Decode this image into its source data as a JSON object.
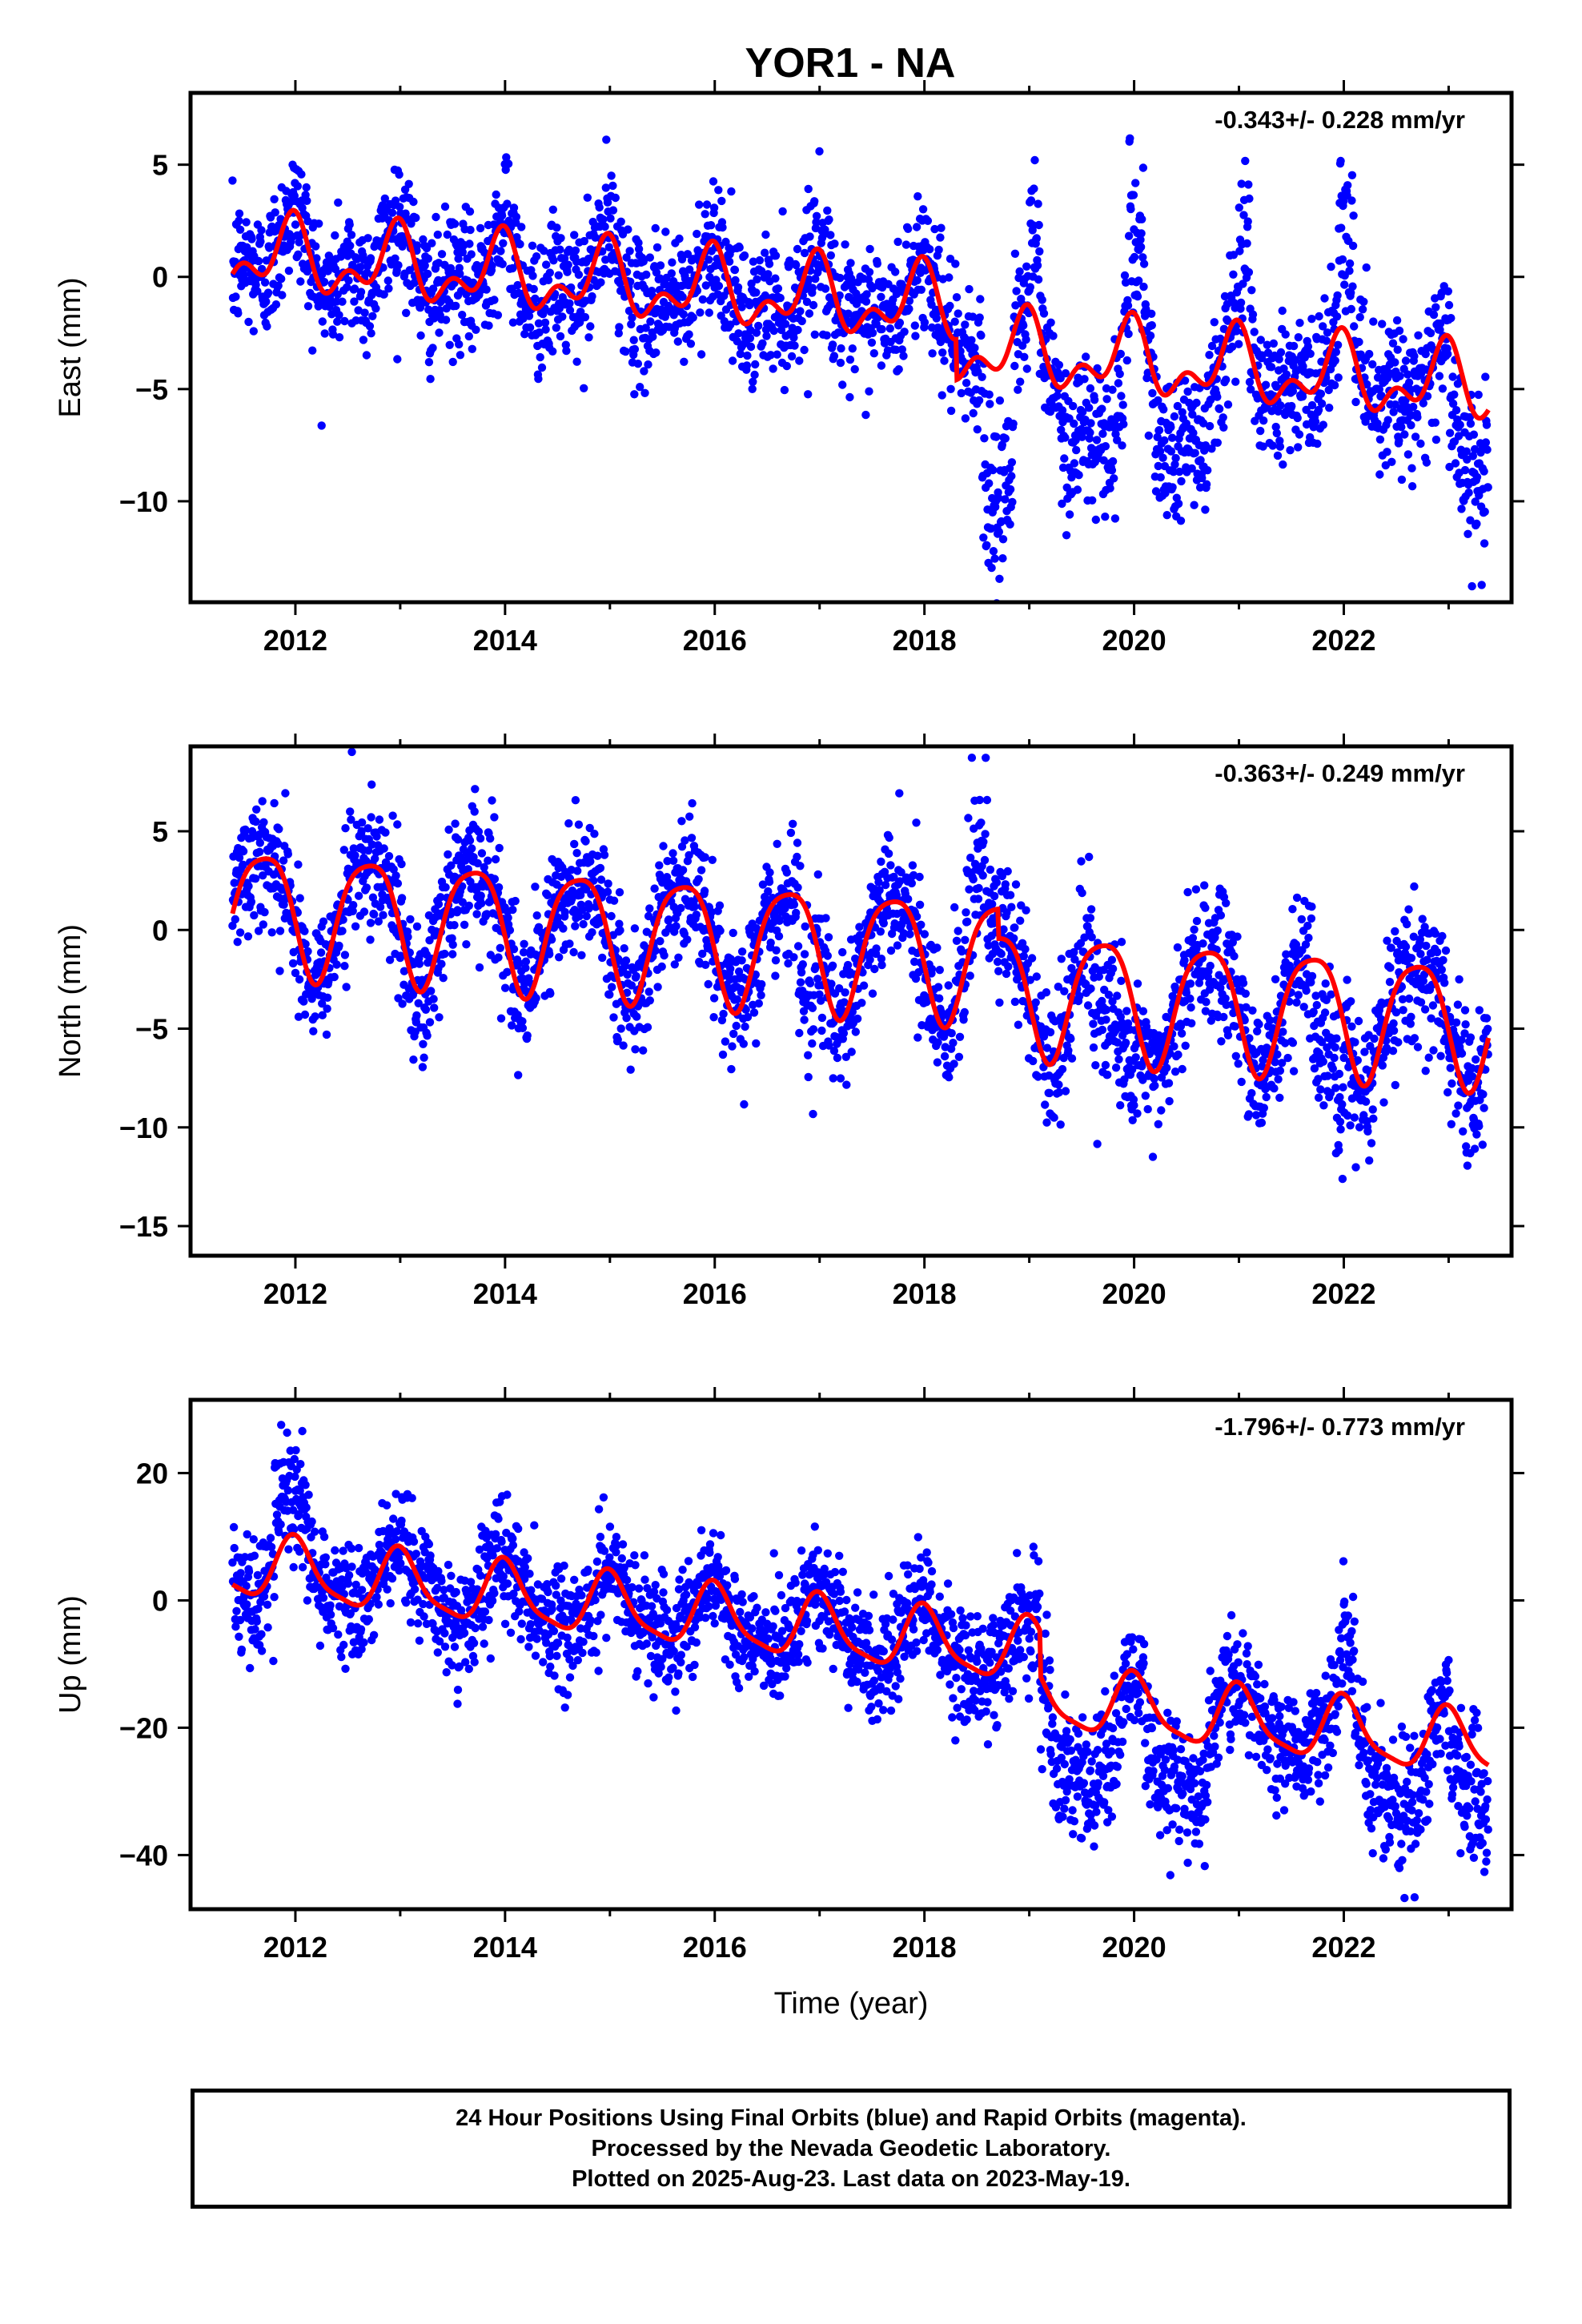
{
  "title": "YOR1 - NA",
  "colors": {
    "points": "#0000ff",
    "model": "#ff0000",
    "axes": "#000000"
  },
  "footer": {
    "line1": "24 Hour Positions Using Final Orbits (blue) and Rapid Orbits (magenta).",
    "line2": "Processed by the Nevada Geodetic Laboratory.",
    "line3": "Plotted on 2025-Aug-23. Last data on 2023-May-19."
  },
  "chart_data": [
    {
      "type": "scatter",
      "component": "East",
      "ylabel": "East (mm)",
      "xlabel": "",
      "rate_label": "-0.343+/- 0.228 mm/yr",
      "xlim": [
        2011.0,
        2023.6
      ],
      "ylim": [
        -14.5,
        8.2
      ],
      "xticks": [
        2012,
        2014,
        2016,
        2018,
        2020,
        2022
      ],
      "yticks": [
        5,
        0,
        -5,
        -10
      ],
      "ytick_labels": [
        "5",
        "0",
        "−10"
      ],
      "ytick_label_values": [
        5,
        0,
        -10
      ],
      "ytick_minus5_label": "−5",
      "grid": false,
      "data_start": 2011.4,
      "data_end": 2023.38,
      "model": {
        "offset": 1.0,
        "rate": -0.343,
        "ref": 2011.4,
        "annual_amp": 1.3,
        "annual_phase": 0.3,
        "semiannual_amp": 0.9,
        "semiannual_phase": 0.1,
        "breaks": [
          {
            "t": 2018.3,
            "step": -1.8
          }
        ]
      },
      "scatter_sigma": 1.5,
      "excursions": [
        {
          "start": 2018.55,
          "end": 2018.85,
          "shift": -5.5
        },
        {
          "start": 2019.3,
          "end": 2019.9,
          "shift": -3.0
        },
        {
          "start": 2020.2,
          "end": 2020.7,
          "shift": -2.5
        },
        {
          "start": 2023.0,
          "end": 2023.38,
          "shift": -3.0
        }
      ],
      "spikes": [
        {
          "start": 2019.0,
          "end": 2019.1,
          "shift": 4.0
        },
        {
          "start": 2019.95,
          "end": 2020.1,
          "shift": 4.5
        },
        {
          "start": 2021.0,
          "end": 2021.1,
          "shift": 5.0
        },
        {
          "start": 2021.95,
          "end": 2022.1,
          "shift": 5.0
        }
      ]
    },
    {
      "type": "scatter",
      "component": "North",
      "ylabel": "North (mm)",
      "xlabel": "",
      "rate_label": "-0.363+/- 0.249 mm/yr",
      "xlim": [
        2011.0,
        2023.6
      ],
      "ylim": [
        -16.5,
        9.3
      ],
      "xticks": [
        2012,
        2014,
        2016,
        2018,
        2020,
        2022
      ],
      "yticks": [
        5,
        0,
        -5,
        -10,
        -15
      ],
      "ytick_labels": [
        "5",
        "0",
        "−5",
        "−10",
        "−15"
      ],
      "ytick_label_values": [
        5,
        0,
        -5,
        -10,
        -15
      ],
      "grid": false,
      "data_start": 2011.4,
      "data_end": 2023.38,
      "model": {
        "offset": 1.2,
        "rate": -0.363,
        "ref": 2011.4,
        "annual_amp": 3.1,
        "annual_phase": 1.9,
        "semiannual_amp": 0.6,
        "semiannual_phase": 0.8,
        "breaks": [
          {
            "t": 2018.7,
            "step": -1.5
          }
        ]
      },
      "scatter_sigma": 1.7,
      "excursions": [
        {
          "start": 2016.8,
          "end": 2016.95,
          "shift": -4.0
        },
        {
          "start": 2019.6,
          "end": 2020.0,
          "shift": -3.5
        },
        {
          "start": 2021.7,
          "end": 2022.0,
          "shift": -4.0
        }
      ],
      "spikes": [
        {
          "start": 2018.4,
          "end": 2018.6,
          "shift": 3.5
        }
      ]
    },
    {
      "type": "scatter",
      "component": "Up",
      "ylabel": "Up (mm)",
      "xlabel": "Time (year)",
      "rate_label": "-1.796+/- 0.773 mm/yr",
      "xlim": [
        2011.0,
        2023.6
      ],
      "ylim": [
        -48.5,
        31.5
      ],
      "xticks": [
        2012,
        2014,
        2016,
        2018,
        2020,
        2022
      ],
      "yticks": [
        20,
        0,
        -20,
        -40
      ],
      "ytick_labels": [
        "20",
        "0",
        "−20",
        "−40"
      ],
      "ytick_label_values": [
        20,
        0,
        -20,
        -40
      ],
      "grid": false,
      "data_start": 2011.4,
      "data_end": 2023.38,
      "model": {
        "offset": 5.5,
        "rate": -1.796,
        "ref": 2011.4,
        "annual_amp": 4.8,
        "annual_phase": 0.0,
        "semiannual_amp": 1.2,
        "semiannual_phase": 0.5,
        "breaks": [
          {
            "t": 2019.1,
            "step": -7.0
          }
        ]
      },
      "scatter_sigma": 4.5,
      "excursions": [
        {
          "start": 2019.2,
          "end": 2019.9,
          "shift": -9.0
        },
        {
          "start": 2020.1,
          "end": 2020.7,
          "shift": -8.0
        },
        {
          "start": 2022.2,
          "end": 2022.8,
          "shift": -6.0
        },
        {
          "start": 2023.0,
          "end": 2023.38,
          "shift": -8.0
        }
      ],
      "spikes": [
        {
          "start": 2011.8,
          "end": 2012.1,
          "shift": 8.0
        },
        {
          "start": 2021.95,
          "end": 2022.1,
          "shift": 9.0
        }
      ]
    }
  ]
}
